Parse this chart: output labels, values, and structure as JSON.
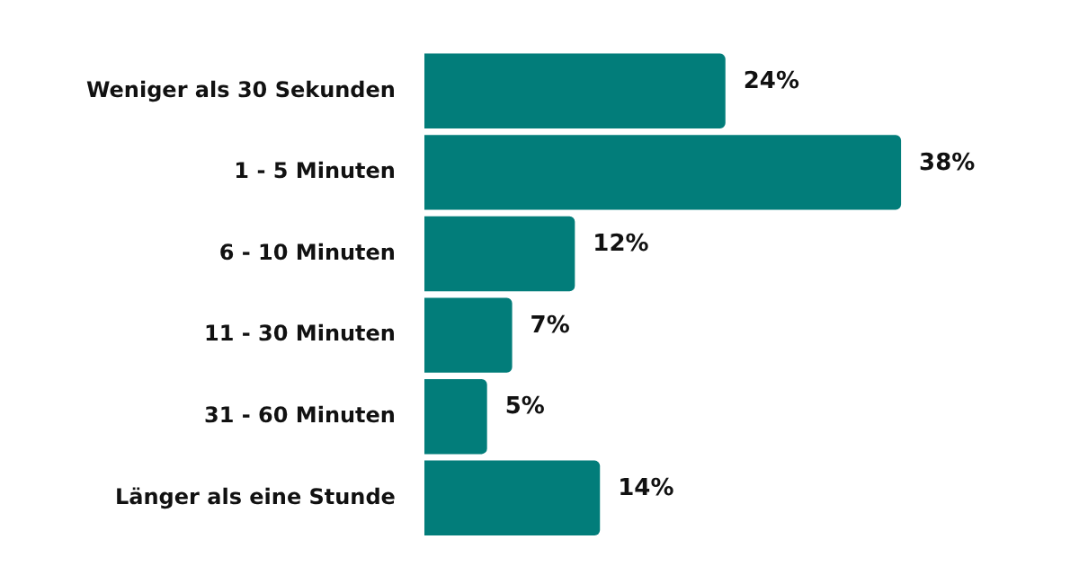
{
  "chart_data": {
    "type": "bar",
    "orientation": "horizontal",
    "categories": [
      "Weniger als 30 Sekunden",
      "1 - 5 Minuten",
      "6 - 10 Minuten",
      "11 - 30 Minuten",
      "31 - 60 Minuten",
      "Länger als eine Stunde"
    ],
    "values": [
      24,
      38,
      12,
      7,
      5,
      14
    ],
    "value_labels": [
      "24%",
      "38%",
      "12%",
      "7%",
      "5%",
      "14%"
    ],
    "color": "#027d7a",
    "legend": false,
    "tick_labels": "y"
  }
}
